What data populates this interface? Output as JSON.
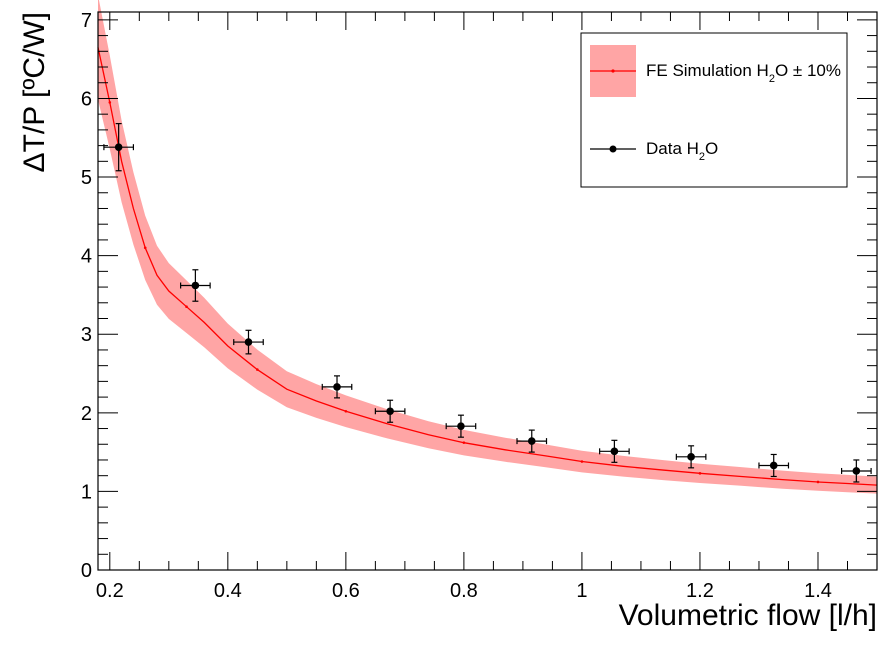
{
  "chart_data": {
    "type": "scatter",
    "xlabel": "Volumetric flow [l/h]",
    "ylabel": "ΔT/P [ºC/W]",
    "xlim": [
      0.18,
      1.5
    ],
    "ylim": [
      0,
      7.1
    ],
    "x_ticks": [
      0.2,
      0.4,
      0.6,
      0.8,
      1,
      1.2,
      1.4
    ],
    "x_tick_labels": [
      "0.2",
      "0.4",
      "0.6",
      "0.8",
      "1",
      "1.2",
      "1.4"
    ],
    "y_ticks": [
      0,
      1,
      2,
      3,
      4,
      5,
      6,
      7
    ],
    "y_tick_labels": [
      "0",
      "1",
      "2",
      "3",
      "4",
      "5",
      "6",
      "7"
    ],
    "colors": {
      "band": "#ffa5a5",
      "line": "#ff0000",
      "data": "#000000"
    },
    "legend": {
      "position": "top-right",
      "entries": [
        {
          "text": "FE Simulation H",
          "sub": "2",
          "suffix": "O ± 10%"
        },
        {
          "text": "Data H",
          "sub": "2",
          "suffix": "O"
        }
      ]
    },
    "series": [
      {
        "name": "FE Simulation H2O",
        "kind": "line_with_band",
        "band_fraction": 0.1,
        "x": [
          0.18,
          0.2,
          0.22,
          0.24,
          0.26,
          0.28,
          0.3,
          0.33,
          0.36,
          0.4,
          0.45,
          0.5,
          0.55,
          0.6,
          0.67,
          0.74,
          0.8,
          0.87,
          0.94,
          1.0,
          1.07,
          1.14,
          1.2,
          1.27,
          1.34,
          1.4,
          1.45,
          1.5
        ],
        "y": [
          6.65,
          5.95,
          5.2,
          4.6,
          4.1,
          3.75,
          3.55,
          3.35,
          3.15,
          2.85,
          2.55,
          2.3,
          2.15,
          2.02,
          1.86,
          1.72,
          1.62,
          1.53,
          1.45,
          1.38,
          1.32,
          1.27,
          1.23,
          1.19,
          1.15,
          1.12,
          1.1,
          1.08
        ]
      },
      {
        "name": "Data H2O",
        "kind": "points_with_errors",
        "x": [
          0.215,
          0.345,
          0.435,
          0.585,
          0.675,
          0.795,
          0.915,
          1.055,
          1.185,
          1.325,
          1.465
        ],
        "y": [
          5.38,
          3.62,
          2.9,
          2.33,
          2.02,
          1.83,
          1.64,
          1.51,
          1.44,
          1.33,
          1.26
        ],
        "xerr": [
          0.025,
          0.025,
          0.025,
          0.025,
          0.025,
          0.025,
          0.025,
          0.025,
          0.025,
          0.025,
          0.025
        ],
        "yerr": [
          0.3,
          0.2,
          0.15,
          0.14,
          0.14,
          0.14,
          0.14,
          0.14,
          0.14,
          0.14,
          0.14
        ]
      }
    ]
  }
}
